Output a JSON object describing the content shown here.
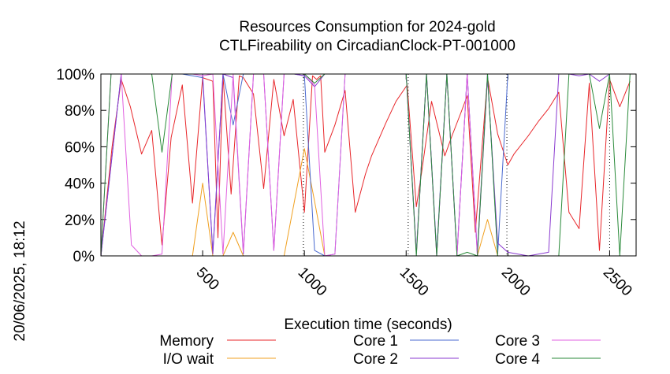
{
  "chart_data": {
    "type": "line",
    "title": "Resources Consumption for 2024-gold",
    "subtitle": "CTLFireability on CircadianClock-PT-001000",
    "xlabel": "Execution time (seconds)",
    "ylabel": "",
    "side_label": "20/06/2025, 18:12",
    "xlim": [
      0,
      2630
    ],
    "ylim": [
      0,
      100
    ],
    "x_ticks": [
      500,
      1000,
      1500,
      2000,
      2500
    ],
    "x_tick_labels": [
      "500",
      "1000",
      "1500",
      "2000",
      "2500"
    ],
    "y_ticks": [
      0,
      20,
      40,
      60,
      80,
      100
    ],
    "y_tick_labels": [
      "0%",
      "20%",
      "40%",
      "60%",
      "80%",
      "100%"
    ],
    "vertical_markers": [
      995,
      1510,
      1995,
      2500
    ],
    "legend_position": "bottom",
    "series": [
      {
        "name": "Memory",
        "color": "#e8262a",
        "x": [
          0,
          55,
          100,
          145,
          200,
          250,
          300,
          345,
          400,
          450,
          500,
          550,
          575,
          600,
          640,
          680,
          700,
          750,
          800,
          850,
          900,
          945,
          1000,
          1040,
          1060,
          1080,
          1100,
          1150,
          1200,
          1250,
          1300,
          1330,
          1400,
          1450,
          1505,
          1550,
          1575,
          1625,
          1690,
          1725,
          1770,
          1800,
          1840,
          1900,
          1950,
          2000,
          2030,
          2100,
          2150,
          2200,
          2250,
          2300,
          2350,
          2400,
          2450,
          2500,
          2550,
          2600
        ],
        "values": [
          0,
          60,
          97,
          82,
          56,
          69,
          6,
          65,
          94,
          29,
          98,
          96,
          10,
          99,
          34,
          99,
          98,
          89,
          37,
          97,
          66,
          86,
          24,
          99,
          97,
          99,
          57,
          72,
          91,
          24,
          45,
          55,
          73,
          85,
          94,
          27,
          45,
          85,
          55,
          66,
          79,
          88,
          13,
          98,
          67,
          50,
          56,
          66,
          74,
          81,
          90,
          24,
          15,
          95,
          3,
          97,
          82,
          96
        ]
      },
      {
        "name": "I/O wait",
        "color": "#f0a020",
        "x": [
          0,
          100,
          200,
          300,
          400,
          450,
          500,
          550,
          600,
          650,
          700,
          800,
          900,
          1000,
          1050,
          1100,
          1200,
          1400,
          1500,
          1600,
          1700,
          1800,
          1850,
          1900,
          1950,
          2000,
          2100,
          2200,
          2300,
          2400,
          2450,
          2500,
          2600
        ],
        "values": [
          0,
          0,
          0,
          0,
          0,
          0,
          40,
          0,
          0,
          13,
          0,
          0,
          0,
          59,
          30,
          0,
          0,
          0,
          0,
          0,
          0,
          0,
          0,
          20,
          0,
          0,
          0,
          0,
          0,
          0,
          0,
          0,
          0
        ]
      },
      {
        "name": "Core 1",
        "color": "#4a6ad0",
        "x": [
          0,
          100,
          200,
          300,
          400,
          500,
          550,
          600,
          650,
          700,
          800,
          900,
          950,
          1000,
          1050,
          1100,
          1150,
          1200,
          1500,
          1550,
          1600,
          1650,
          1700,
          1750,
          1800,
          1850,
          1900,
          1950,
          2000,
          2100,
          2200,
          2300,
          2400,
          2450,
          2500,
          2600
        ],
        "values": [
          0,
          100,
          100,
          100,
          100,
          98,
          2,
          100,
          72,
          100,
          100,
          100,
          100,
          99,
          3,
          0,
          1,
          100,
          100,
          2,
          100,
          2,
          100,
          1,
          100,
          2,
          100,
          1,
          100,
          100,
          100,
          100,
          100,
          100,
          100,
          100
        ]
      },
      {
        "name": "Core 2",
        "color": "#8a3ad0",
        "x": [
          0,
          100,
          150,
          200,
          250,
          300,
          350,
          400,
          450,
          500,
          550,
          600,
          650,
          700,
          750,
          800,
          850,
          900,
          950,
          1000,
          1050,
          1100,
          1150,
          1200,
          1500,
          1550,
          1600,
          1650,
          1700,
          1750,
          1800,
          1850,
          1900,
          1950,
          2000,
          2050,
          2100,
          2200,
          2250,
          2300,
          2350,
          2400,
          2450,
          2500,
          2550,
          2600
        ],
        "values": [
          0,
          100,
          100,
          100,
          100,
          100,
          100,
          100,
          100,
          100,
          1,
          100,
          98,
          1,
          100,
          100,
          3,
          100,
          100,
          99,
          93,
          100,
          100,
          100,
          100,
          1,
          100,
          0,
          100,
          0,
          100,
          0,
          98,
          7,
          2,
          1,
          0,
          2,
          100,
          100,
          99,
          100,
          96,
          100,
          100,
          100
        ]
      },
      {
        "name": "Core 3",
        "color": "#e060e0",
        "x": [
          0,
          50,
          100,
          150,
          200,
          250,
          300,
          350,
          400,
          450,
          500,
          550,
          600,
          650,
          700,
          750,
          800,
          850,
          900,
          950,
          1000,
          1050,
          1100,
          1150,
          1200,
          1500,
          1550,
          1600,
          1650,
          1700,
          1750,
          1800,
          1850,
          1900,
          1950,
          2000,
          2050,
          2100,
          2200,
          2300,
          2400,
          2500,
          2600
        ],
        "values": [
          0,
          100,
          100,
          6,
          0,
          0,
          1,
          100,
          100,
          100,
          99,
          100,
          1,
          100,
          2,
          100,
          100,
          3,
          100,
          100,
          100,
          94,
          0,
          1,
          100,
          100,
          1,
          100,
          0,
          100,
          0,
          100,
          1,
          100,
          100,
          100,
          100,
          100,
          100,
          100,
          100,
          100,
          100
        ]
      },
      {
        "name": "Core 4",
        "color": "#2a8a3a",
        "x": [
          0,
          50,
          100,
          150,
          200,
          250,
          300,
          350,
          400,
          450,
          500,
          550,
          600,
          650,
          700,
          1000,
          1050,
          1100,
          1200,
          1500,
          1550,
          1600,
          1650,
          1700,
          1750,
          1800,
          1850,
          1900,
          1950,
          2000,
          2100,
          2200,
          2250,
          2300,
          2400,
          2450,
          2500,
          2550,
          2600
        ],
        "values": [
          0,
          100,
          100,
          100,
          100,
          100,
          57,
          100,
          100,
          100,
          100,
          100,
          100,
          100,
          100,
          100,
          95,
          100,
          100,
          100,
          0,
          100,
          0,
          100,
          0,
          2,
          0,
          100,
          0,
          0,
          0,
          0,
          0,
          100,
          100,
          70,
          100,
          0,
          100
        ]
      }
    ]
  }
}
